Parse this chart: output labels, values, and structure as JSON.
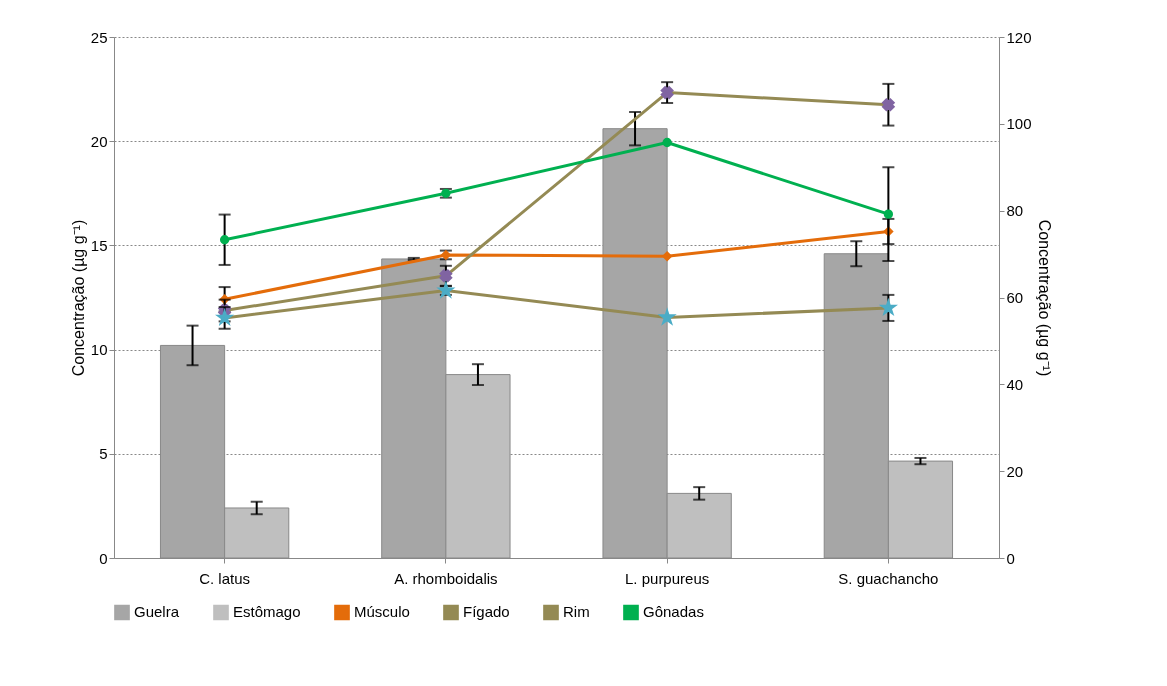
{
  "chart_data": {
    "type": "bar",
    "categories": [
      "C. latus",
      "A. rhomboidalis",
      "L. purpureus",
      "S. guachancho"
    ],
    "ylabel": "Concentração (µg g⁻¹)",
    "y2label": "Concentração (µg g⁻¹)",
    "ylim": [
      0,
      25
    ],
    "yticks": [
      0,
      5,
      10,
      15,
      20,
      25
    ],
    "y2lim": [
      0,
      120
    ],
    "y2ticks": [
      0,
      20,
      40,
      60,
      80,
      100,
      120
    ],
    "grid": "y",
    "legend": "bottom",
    "series": [
      {
        "name": "Guelra",
        "color": "#a6a6a6",
        "values": [
          10.2,
          14.35,
          20.6,
          14.6
        ],
        "errors": [
          0.95,
          0.05,
          0.8,
          0.6
        ]
      },
      {
        "name": "Estômago",
        "color": "#bfbfbf",
        "values": [
          2.4,
          8.8,
          3.1,
          4.65
        ],
        "errors": [
          0.3,
          0.5,
          0.3,
          0.15
        ]
      },
      {
        "name": "Músculo",
        "type": "line",
        "axis": "y2",
        "color": "#e46c0a",
        "marker": "diamond",
        "values": [
          59.6,
          69.8,
          69.5,
          75.2
        ],
        "errors": [
          2.8,
          1.0,
          null,
          2.9
        ]
      },
      {
        "name": "Fígado",
        "type": "line",
        "axis": "y2",
        "color": "#948a54",
        "colors": [
          "#8064a2",
          "#8064a2",
          "#8064a2",
          "#8064a2"
        ],
        "marker": "cross",
        "values": [
          57.0,
          65.0,
          107.2,
          104.4
        ],
        "errors": [
          2.5,
          2.3,
          2.4,
          4.8
        ]
      },
      {
        "name": "Rim",
        "type": "line",
        "axis": "y2",
        "color": "#948a54",
        "colors": [
          "#4bacc6",
          "#4bacc6",
          "#4bacc6",
          "#4bacc6"
        ],
        "marker": "star",
        "values": [
          55.3,
          61.6,
          55.4,
          57.6
        ],
        "errors": [
          2.5,
          1.0,
          null,
          3.0
        ]
      },
      {
        "name": "Gônadas",
        "type": "line",
        "axis": "y2",
        "color": "#00b050",
        "marker": "circle",
        "values": [
          73.3,
          84.0,
          95.7,
          79.2
        ],
        "errors": [
          5.8,
          1.0,
          null,
          10.8
        ]
      }
    ]
  }
}
